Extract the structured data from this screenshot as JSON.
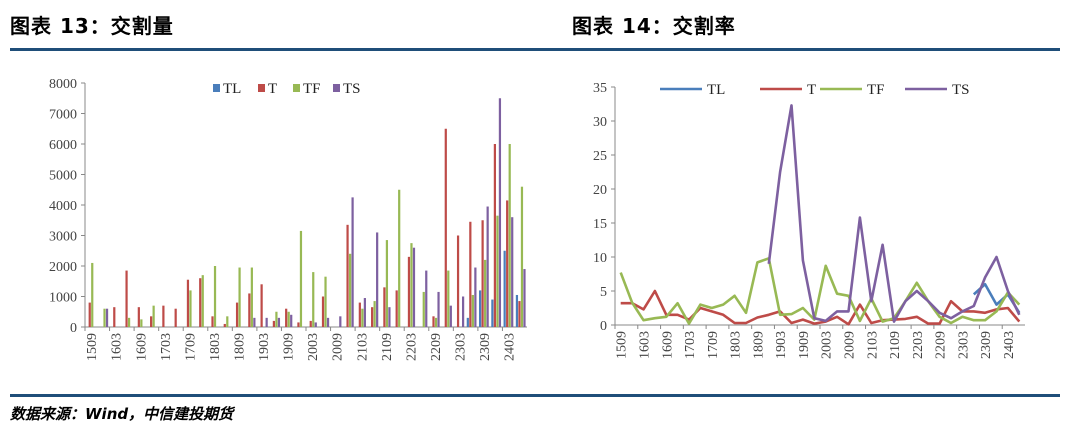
{
  "left_title": "图表 13：交割量",
  "right_title": "图表 14：交割率",
  "source": "数据来源：Wind，中信建投期货",
  "colors": {
    "TL": "#4a7ebb",
    "T": "#be4b48",
    "TF": "#98b954",
    "TS": "#7d60a0",
    "rule": "#1f4e79"
  },
  "chart_data": [
    {
      "type": "bar",
      "title": "",
      "ylim": [
        0,
        8000
      ],
      "yticks": [
        "0",
        "1000",
        "2000",
        "3000",
        "4000",
        "5000",
        "6000",
        "7000",
        "8000"
      ],
      "categories": [
        "1509",
        "1512",
        "1603",
        "1606",
        "1609",
        "1612",
        "1703",
        "1706",
        "1709",
        "1712",
        "1803",
        "1806",
        "1809",
        "1812",
        "1903",
        "1906",
        "1909",
        "1912",
        "2003",
        "2006",
        "2009",
        "2012",
        "2103",
        "2106",
        "2109",
        "2112",
        "2203",
        "2206",
        "2209",
        "2212",
        "2303",
        "2306",
        "2309",
        "2312",
        "2403",
        "2406"
      ],
      "tick_labels": [
        "1509",
        "1603",
        "1609",
        "1703",
        "1709",
        "1803",
        "1809",
        "1903",
        "1909",
        "2003",
        "2009",
        "2103",
        "2109",
        "2203",
        "2209",
        "2303",
        "2309",
        "2403"
      ],
      "series": [
        {
          "name": "TL",
          "values": [
            0,
            0,
            0,
            0,
            0,
            0,
            0,
            0,
            0,
            0,
            0,
            0,
            0,
            0,
            0,
            0,
            0,
            0,
            0,
            0,
            0,
            0,
            0,
            0,
            0,
            0,
            0,
            0,
            0,
            0,
            0,
            300,
            1200,
            900,
            2500,
            1050
          ]
        },
        {
          "name": "T",
          "values": [
            800,
            0,
            650,
            1850,
            650,
            350,
            700,
            600,
            1550,
            1600,
            350,
            100,
            800,
            1100,
            1400,
            200,
            600,
            150,
            200,
            1000,
            0,
            3350,
            800,
            650,
            1300,
            1200,
            2300,
            0,
            350,
            6500,
            3000,
            3450,
            3500,
            6000,
            4150,
            850
          ]
        },
        {
          "name": "TF",
          "values": [
            2100,
            600,
            0,
            300,
            250,
            700,
            0,
            0,
            1200,
            1700,
            2000,
            350,
            1950,
            1950,
            0,
            500,
            500,
            3150,
            1800,
            1650,
            0,
            2400,
            600,
            850,
            2850,
            4500,
            2750,
            1150,
            300,
            1850,
            0,
            1050,
            2200,
            3650,
            6000,
            4600
          ]
        },
        {
          "name": "TS",
          "values": [
            0,
            600,
            0,
            0,
            0,
            0,
            0,
            0,
            0,
            0,
            0,
            0,
            0,
            300,
            300,
            300,
            400,
            0,
            150,
            300,
            350,
            4250,
            950,
            3100,
            650,
            0,
            2600,
            1850,
            1150,
            700,
            1000,
            1950,
            3950,
            7500,
            3600,
            1900
          ]
        }
      ]
    },
    {
      "type": "line",
      "title": "",
      "ylim": [
        0,
        35
      ],
      "yticks": [
        "0",
        "5",
        "10",
        "15",
        "20",
        "25",
        "30",
        "35"
      ],
      "categories": [
        "1509",
        "1512",
        "1603",
        "1606",
        "1609",
        "1612",
        "1703",
        "1706",
        "1709",
        "1712",
        "1803",
        "1806",
        "1809",
        "1812",
        "1903",
        "1906",
        "1909",
        "1912",
        "2003",
        "2006",
        "2009",
        "2012",
        "2103",
        "2106",
        "2109",
        "2112",
        "2203",
        "2206",
        "2209",
        "2212",
        "2303",
        "2306",
        "2309",
        "2312",
        "2403",
        "2406"
      ],
      "tick_labels": [
        "1509",
        "1603",
        "1609",
        "1703",
        "1709",
        "1803",
        "1809",
        "1903",
        "1909",
        "2003",
        "2009",
        "2103",
        "2109",
        "2203",
        "2209",
        "2303",
        "2309",
        "2403"
      ],
      "series": [
        {
          "name": "TL",
          "values": [
            null,
            null,
            null,
            null,
            null,
            null,
            null,
            null,
            null,
            null,
            null,
            null,
            null,
            null,
            null,
            null,
            null,
            null,
            null,
            null,
            null,
            null,
            null,
            null,
            null,
            null,
            null,
            null,
            null,
            null,
            null,
            4.5,
            6,
            3,
            4.5,
            1.8
          ]
        },
        {
          "name": "T",
          "values": [
            3.2,
            3.2,
            2.3,
            5,
            1.5,
            1.5,
            0.8,
            2.5,
            2,
            1.5,
            0.3,
            0.3,
            1.1,
            1.5,
            2,
            0.3,
            0.8,
            0.2,
            0.5,
            1.2,
            0.1,
            3,
            0.3,
            0.7,
            0.8,
            0.9,
            1.2,
            0.2,
            0.2,
            3.5,
            2,
            2,
            1.8,
            2.3,
            2.5,
            0.5
          ]
        },
        {
          "name": "TF",
          "values": [
            7.7,
            3.3,
            0.7,
            1,
            1.2,
            3.2,
            0.2,
            3,
            2.5,
            3,
            4.3,
            1.8,
            9.2,
            9.8,
            1.5,
            1.6,
            2.5,
            0.8,
            8.7,
            4.6,
            4.3,
            0.6,
            3.9,
            0.5,
            1,
            3.5,
            6.2,
            3.5,
            1.2,
            0.3,
            1.2,
            0.7,
            0.7,
            2,
            4.8,
            3
          ]
        },
        {
          "name": "TS",
          "values": [
            null,
            null,
            null,
            null,
            null,
            null,
            null,
            null,
            null,
            null,
            null,
            null,
            null,
            9,
            22.5,
            32.3,
            9.5,
            1,
            0.6,
            2,
            2,
            15.8,
            3.5,
            11.8,
            0.5,
            3.5,
            5,
            3.5,
            1.8,
            1,
            2,
            2.8,
            7,
            10,
            5,
            1.5
          ]
        }
      ]
    }
  ]
}
